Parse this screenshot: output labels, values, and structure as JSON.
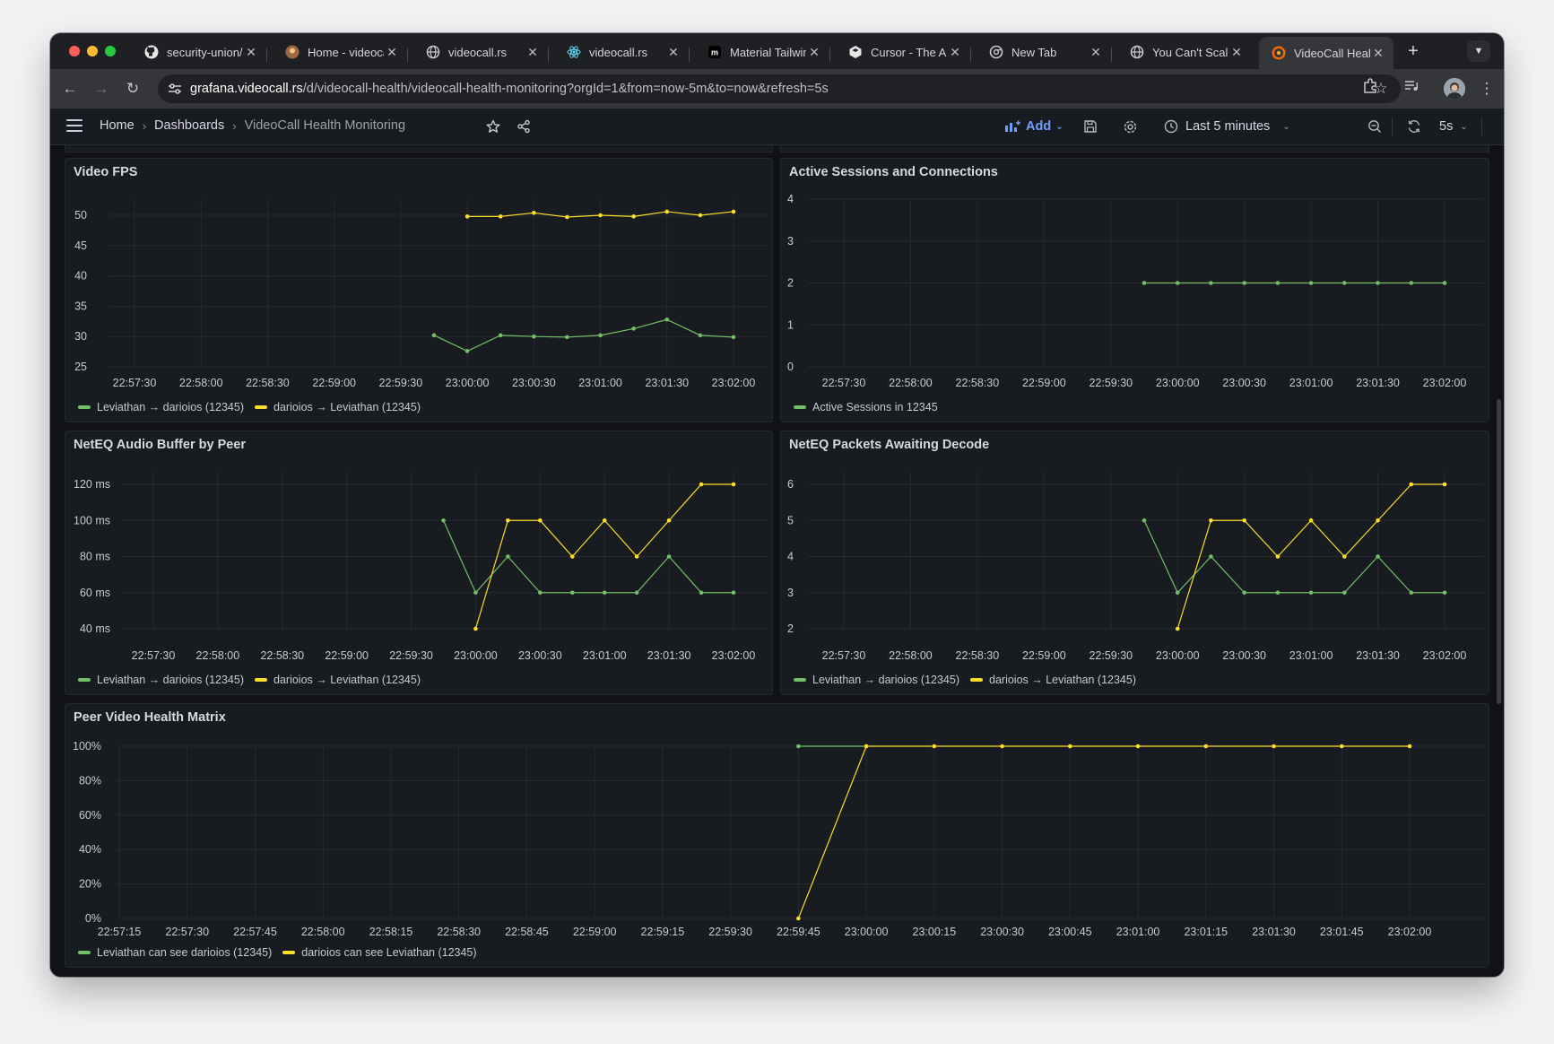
{
  "browser": {
    "tabs": [
      {
        "title": "security-union/",
        "icon": "github-icon"
      },
      {
        "title": "Home - videoca",
        "icon": "videocall-favicon-icon"
      },
      {
        "title": "videocall.rs",
        "icon": "globe-icon"
      },
      {
        "title": "videocall.rs",
        "icon": "react-icon"
      },
      {
        "title": "Material Tailwin",
        "icon": "medium-icon"
      },
      {
        "title": "Cursor - The AI",
        "icon": "cursor-icon"
      },
      {
        "title": "New Tab",
        "icon": "chrome-icon"
      },
      {
        "title": "You Can't Scale",
        "icon": "globe-icon"
      },
      {
        "title": "VideoCall Healt",
        "icon": "grafana-icon"
      }
    ],
    "active_tab_index": 8,
    "url_host": "grafana.videocall.rs",
    "url_path": "/d/videocall-health/videocall-health-monitoring?orgId=1&from=now-5m&to=now&refresh=5s"
  },
  "grafana": {
    "breadcrumbs": [
      "Home",
      "Dashboards",
      "VideoCall Health Monitoring"
    ],
    "add_label": "Add",
    "time_range": "Last 5 minutes",
    "refresh_interval": "5s"
  },
  "colors": {
    "green": "#73bf69",
    "yellow": "#fade2a",
    "grid": "#272a30"
  },
  "panels": {
    "fps": {
      "title": "Video FPS",
      "legend": [
        "Leviathan → darioios (12345)",
        "darioios → Leviathan (12345)"
      ],
      "chart_data": {
        "type": "line",
        "x": [
          "22:57:30",
          "22:58:00",
          "22:58:30",
          "22:59:00",
          "22:59:30",
          "23:00:00",
          "23:00:30",
          "23:01:00",
          "23:01:30",
          "23:02:00"
        ],
        "ylim": [
          25,
          52
        ],
        "yticks": [
          50,
          45,
          40,
          35,
          30,
          25
        ],
        "series": [
          {
            "name": "Leviathan → darioios (12345)",
            "color": "green",
            "points": [
              [
                "22:59:45",
                30.2
              ],
              [
                "23:00:00",
                27.6
              ],
              [
                "23:00:15",
                30.2
              ],
              [
                "23:00:30",
                30.0
              ],
              [
                "23:00:45",
                29.9
              ],
              [
                "23:01:00",
                30.2
              ],
              [
                "23:01:15",
                31.3
              ],
              [
                "23:01:30",
                32.8
              ],
              [
                "23:01:45",
                30.2
              ],
              [
                "23:02:00",
                29.9
              ]
            ]
          },
          {
            "name": "darioios → Leviathan (12345)",
            "color": "yellow",
            "points": [
              [
                "23:00:00",
                49.8
              ],
              [
                "23:00:15",
                49.8
              ],
              [
                "23:00:30",
                50.4
              ],
              [
                "23:00:45",
                49.7
              ],
              [
                "23:01:00",
                50.0
              ],
              [
                "23:01:15",
                49.8
              ],
              [
                "23:01:30",
                50.6
              ],
              [
                "23:01:45",
                50.0
              ],
              [
                "23:02:00",
                50.6
              ]
            ]
          }
        ]
      }
    },
    "sessions": {
      "title": "Active Sessions and Connections",
      "legend": [
        "Active Sessions in 12345"
      ],
      "chart_data": {
        "type": "line",
        "x": [
          "22:57:30",
          "22:58:00",
          "22:58:30",
          "22:59:00",
          "22:59:30",
          "23:00:00",
          "23:00:30",
          "23:01:00",
          "23:01:30",
          "23:02:00"
        ],
        "ylim": [
          0,
          4
        ],
        "yticks": [
          4,
          3,
          2,
          1,
          0
        ],
        "series": [
          {
            "name": "Active Sessions in 12345",
            "color": "green",
            "points": [
              [
                "22:59:45",
                2
              ],
              [
                "23:00:00",
                2
              ],
              [
                "23:00:15",
                2
              ],
              [
                "23:00:30",
                2
              ],
              [
                "23:00:45",
                2
              ],
              [
                "23:01:00",
                2
              ],
              [
                "23:01:15",
                2
              ],
              [
                "23:01:30",
                2
              ],
              [
                "23:01:45",
                2
              ],
              [
                "23:02:00",
                2
              ]
            ]
          }
        ]
      }
    },
    "audio": {
      "title": "NetEQ Audio Buffer by Peer",
      "legend": [
        "Leviathan → darioios (12345)",
        "darioios → Leviathan (12345)"
      ],
      "chart_data": {
        "type": "line",
        "x": [
          "22:57:30",
          "22:58:00",
          "22:58:30",
          "22:59:00",
          "22:59:30",
          "23:00:00",
          "23:00:30",
          "23:01:00",
          "23:01:30",
          "23:02:00"
        ],
        "ylim": [
          40,
          120
        ],
        "yticks": [
          "120 ms",
          "100 ms",
          "80 ms",
          "60 ms",
          "40 ms"
        ],
        "series": [
          {
            "name": "Leviathan → darioios (12345)",
            "color": "green",
            "points": [
              [
                "22:59:45",
                100
              ],
              [
                "23:00:00",
                60
              ],
              [
                "23:00:15",
                80
              ],
              [
                "23:00:30",
                60
              ],
              [
                "23:00:45",
                60
              ],
              [
                "23:01:00",
                60
              ],
              [
                "23:01:15",
                60
              ],
              [
                "23:01:30",
                80
              ],
              [
                "23:01:45",
                60
              ],
              [
                "23:02:00",
                60
              ]
            ]
          },
          {
            "name": "darioios → Leviathan (12345)",
            "color": "yellow",
            "points": [
              [
                "23:00:00",
                40
              ],
              [
                "23:00:15",
                100
              ],
              [
                "23:00:30",
                100
              ],
              [
                "23:00:45",
                80
              ],
              [
                "23:01:00",
                100
              ],
              [
                "23:01:15",
                80
              ],
              [
                "23:01:30",
                100
              ],
              [
                "23:01:45",
                120
              ],
              [
                "23:02:00",
                120
              ]
            ]
          }
        ]
      }
    },
    "packets": {
      "title": "NetEQ Packets Awaiting Decode",
      "legend": [
        "Leviathan → darioios (12345)",
        "darioios → Leviathan (12345)"
      ],
      "chart_data": {
        "type": "line",
        "x": [
          "22:57:30",
          "22:58:00",
          "22:58:30",
          "22:59:00",
          "22:59:30",
          "23:00:00",
          "23:00:30",
          "23:01:00",
          "23:01:30",
          "23:02:00"
        ],
        "ylim": [
          2,
          6
        ],
        "yticks": [
          6,
          5,
          4,
          3,
          2
        ],
        "series": [
          {
            "name": "Leviathan → darioios (12345)",
            "color": "green",
            "points": [
              [
                "22:59:45",
                5
              ],
              [
                "23:00:00",
                3
              ],
              [
                "23:00:15",
                4
              ],
              [
                "23:00:30",
                3
              ],
              [
                "23:00:45",
                3
              ],
              [
                "23:01:00",
                3
              ],
              [
                "23:01:15",
                3
              ],
              [
                "23:01:30",
                4
              ],
              [
                "23:01:45",
                3
              ],
              [
                "23:02:00",
                3
              ]
            ]
          },
          {
            "name": "darioios → Leviathan (12345)",
            "color": "yellow",
            "points": [
              [
                "23:00:00",
                2
              ],
              [
                "23:00:15",
                5
              ],
              [
                "23:00:30",
                5
              ],
              [
                "23:00:45",
                4
              ],
              [
                "23:01:00",
                5
              ],
              [
                "23:01:15",
                4
              ],
              [
                "23:01:30",
                5
              ],
              [
                "23:01:45",
                6
              ],
              [
                "23:02:00",
                6
              ]
            ]
          }
        ]
      }
    },
    "health": {
      "title": "Peer Video Health Matrix",
      "legend": [
        "Leviathan can see darioios (12345)",
        "darioios can see Leviathan (12345)"
      ],
      "chart_data": {
        "type": "line",
        "x": [
          "22:57:15",
          "22:57:30",
          "22:57:45",
          "22:58:00",
          "22:58:15",
          "22:58:30",
          "22:58:45",
          "22:59:00",
          "22:59:15",
          "22:59:30",
          "22:59:45",
          "23:00:00",
          "23:00:15",
          "23:00:30",
          "23:00:45",
          "23:01:00",
          "23:01:15",
          "23:01:30",
          "23:01:45",
          "23:02:00"
        ],
        "ylim": [
          0,
          100
        ],
        "yticks": [
          "100%",
          "80%",
          "60%",
          "40%",
          "20%",
          "0%"
        ],
        "series": [
          {
            "name": "Leviathan can see darioios (12345)",
            "color": "green",
            "points": [
              [
                "22:59:45",
                100
              ],
              [
                "23:00:00",
                100
              ]
            ]
          },
          {
            "name": "darioios can see Leviathan (12345)",
            "color": "yellow",
            "points": [
              [
                "22:59:45",
                0
              ],
              [
                "23:00:00",
                100
              ],
              [
                "23:00:15",
                100
              ],
              [
                "23:00:30",
                100
              ],
              [
                "23:00:45",
                100
              ],
              [
                "23:01:00",
                100
              ],
              [
                "23:01:15",
                100
              ],
              [
                "23:01:30",
                100
              ],
              [
                "23:01:45",
                100
              ],
              [
                "23:02:00",
                100
              ]
            ]
          }
        ]
      }
    }
  }
}
